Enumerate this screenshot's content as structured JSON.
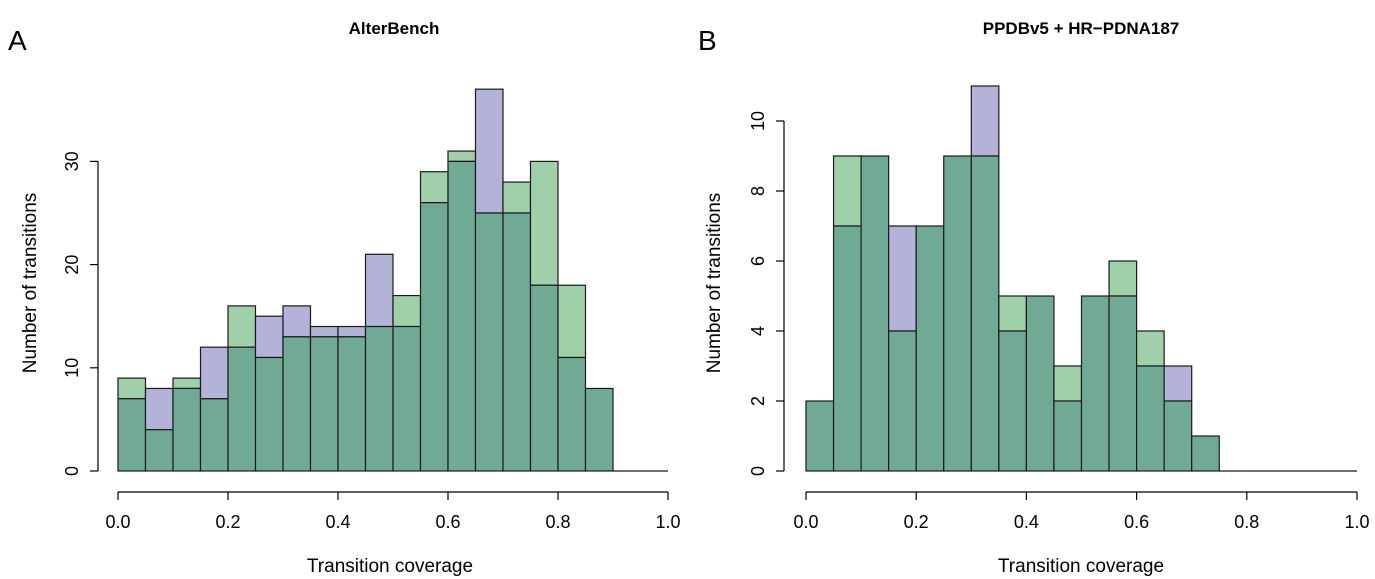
{
  "chart_data": [
    {
      "panel": "A",
      "type": "bar",
      "title": "AlterBench",
      "xlabel": "Transition coverage",
      "ylabel": "Number of transitions",
      "xlim": [
        0.0,
        1.0
      ],
      "ylim": [
        0,
        40
      ],
      "xticks": [
        0.0,
        0.2,
        0.4,
        0.6,
        0.8,
        1.0
      ],
      "xtick_labels": [
        "0.0",
        "0.2",
        "0.4",
        "0.6",
        "0.8",
        "1.0"
      ],
      "yticks": [
        0,
        10,
        20,
        30
      ],
      "ytick_labels": [
        "0",
        "10",
        "20",
        "30"
      ],
      "bin_width": 0.05,
      "bin_starts": [
        0.0,
        0.05,
        0.1,
        0.15,
        0.2,
        0.25,
        0.3,
        0.35,
        0.4,
        0.45,
        0.5,
        0.55,
        0.6,
        0.65,
        0.7,
        0.75,
        0.8,
        0.85,
        0.9,
        0.95
      ],
      "series": [
        {
          "values": [
            9,
            4,
            9,
            7,
            16,
            11,
            13,
            13,
            13,
            14,
            17,
            29,
            31,
            25,
            28,
            30,
            18,
            8,
            0,
            0
          ],
          "color": "#9fd0a9"
        },
        {
          "values": [
            7,
            8,
            8,
            12,
            12,
            15,
            16,
            14,
            14,
            21,
            14,
            26,
            30,
            37,
            25,
            18,
            11,
            8,
            0,
            0
          ],
          "color": "#b3b2d9"
        }
      ],
      "overlap_color": "#71aa94",
      "grid": false
    },
    {
      "panel": "B",
      "type": "bar",
      "title": "PPDBv5 + HR−PDNA187",
      "xlabel": "Transition coverage",
      "ylabel": "Number of transitions",
      "xlim": [
        0.0,
        1.0
      ],
      "ylim": [
        0,
        11.5
      ],
      "xticks": [
        0.0,
        0.2,
        0.4,
        0.6,
        0.8,
        1.0
      ],
      "xtick_labels": [
        "0.0",
        "0.2",
        "0.4",
        "0.6",
        "0.8",
        "1.0"
      ],
      "yticks": [
        0,
        2,
        4,
        6,
        8,
        10
      ],
      "ytick_labels": [
        "0",
        "2",
        "4",
        "6",
        "8",
        "10"
      ],
      "bin_width": 0.05,
      "bin_starts": [
        0.0,
        0.05,
        0.1,
        0.15,
        0.2,
        0.25,
        0.3,
        0.35,
        0.4,
        0.45,
        0.5,
        0.55,
        0.6,
        0.65,
        0.7,
        0.75,
        0.8,
        0.85,
        0.9,
        0.95
      ],
      "series": [
        {
          "values": [
            2,
            9,
            9,
            4,
            7,
            9,
            9,
            5,
            5,
            3,
            5,
            6,
            4,
            2,
            1,
            0,
            0,
            0,
            0,
            0
          ],
          "color": "#9fd0a9"
        },
        {
          "values": [
            2,
            7,
            9,
            7,
            7,
            9,
            11,
            4,
            5,
            2,
            5,
            5,
            3,
            3,
            1,
            0,
            0,
            0,
            0,
            0
          ],
          "color": "#b3b2d9"
        }
      ],
      "overlap_color": "#71aa94",
      "grid": false
    }
  ]
}
